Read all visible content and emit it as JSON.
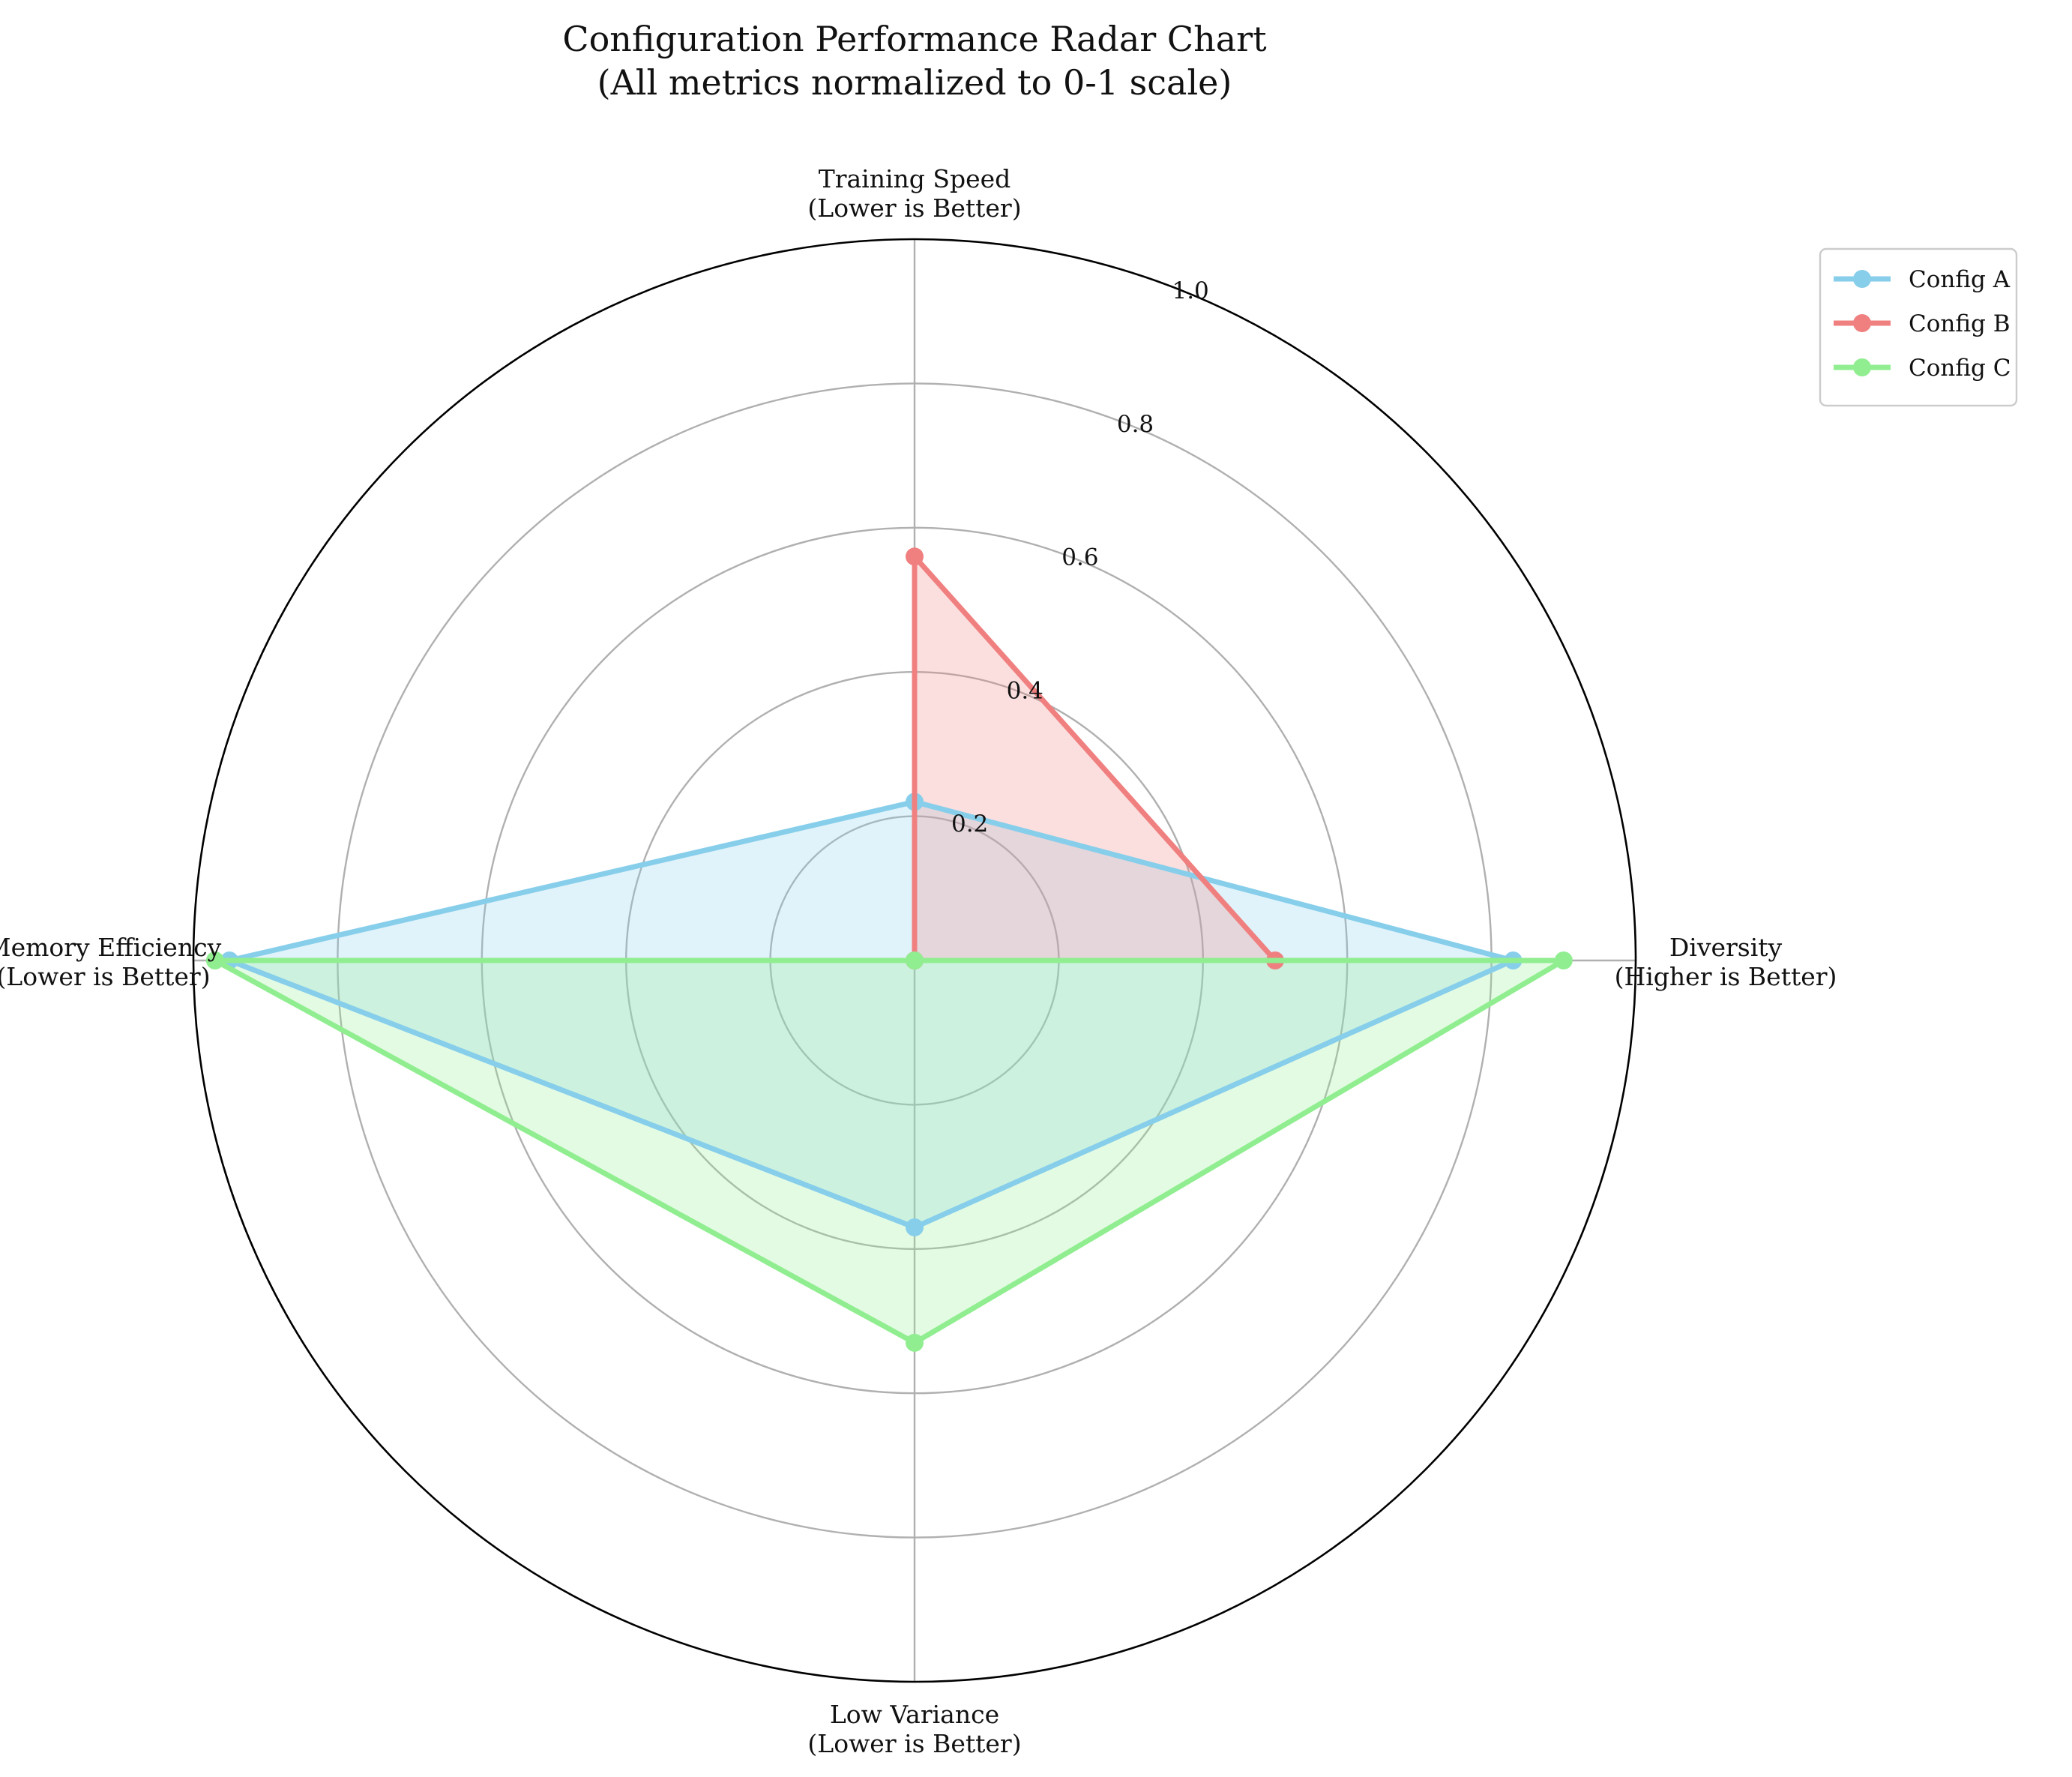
{
  "chart_data": {
    "type": "radar",
    "title": "Configuration Performance Radar Chart",
    "subtitle": "(All metrics normalized to 0-1 scale)",
    "axes": [
      {
        "name": "Training Speed",
        "note": "(Lower is Better)"
      },
      {
        "name": "Diversity",
        "note": "(Higher is Better)"
      },
      {
        "name": "Low Variance",
        "note": "(Lower is Better)"
      },
      {
        "name": "Memory Efficiency",
        "note": "(Lower is Better)"
      }
    ],
    "rlim": [
      0,
      1.0
    ],
    "rticks": [
      0.2,
      0.4,
      0.6,
      0.8,
      1.0
    ],
    "rtick_labels": [
      "0.2",
      "0.4",
      "0.6",
      "0.8",
      "1.0"
    ],
    "grid": true,
    "legend_position": "top-right",
    "series": [
      {
        "name": "Config A",
        "color": "#87CEEB",
        "values": [
          0.22,
          0.83,
          0.37,
          0.95
        ]
      },
      {
        "name": "Config B",
        "color": "#F08080",
        "values": [
          0.56,
          0.5,
          0.0,
          0.0
        ]
      },
      {
        "name": "Config C",
        "color": "#90EE90",
        "values": [
          0.0,
          0.9,
          0.53,
          0.97
        ]
      }
    ]
  }
}
